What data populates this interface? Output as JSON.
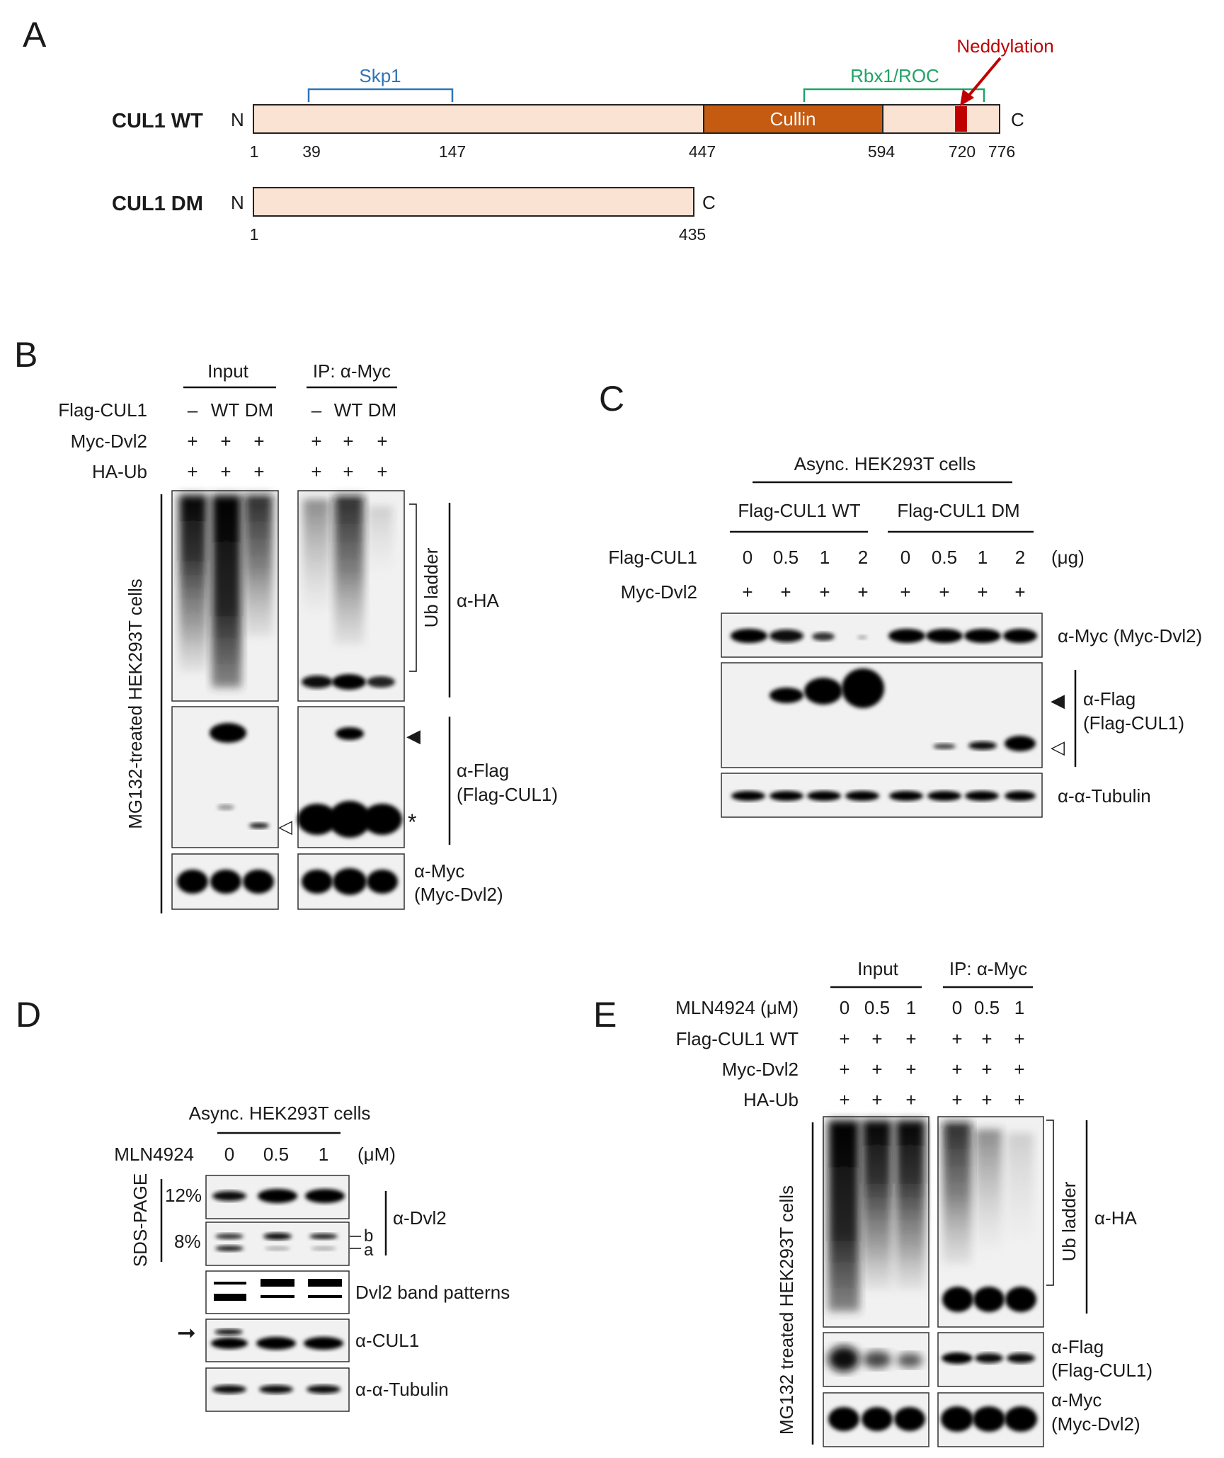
{
  "panels": {
    "A": "A",
    "B": "B",
    "C": "C",
    "D": "D",
    "E": "E"
  },
  "panel_a": {
    "wt_name": "CUL1 WT",
    "dm_name": "CUL1 DM",
    "n_term": "N",
    "c_term": "C",
    "cullin_label": "Cullin",
    "skp1_label": "Skp1",
    "rbx1_label": "Rbx1/ROC",
    "neddylation_label": "Neddylation",
    "wt_positions": [
      "1",
      "39",
      "147",
      "447",
      "594",
      "720",
      "776"
    ],
    "dm_positions": [
      "1",
      "435"
    ],
    "colors": {
      "domain_fill": "#fbe3d4",
      "cullin": "#c55a11",
      "neddylation": "#c00000",
      "skp1_bracket": "#2e75b6",
      "rbx1_bracket": "#21a366"
    }
  },
  "panel_b": {
    "input_label": "Input",
    "ip_label": "IP: α-Myc",
    "row_labels": [
      "Flag-CUL1",
      "Myc-Dvl2",
      "HA-Ub"
    ],
    "flag_values_input": [
      "–",
      "WT",
      "DM"
    ],
    "flag_values_ip": [
      "–",
      "WT",
      "DM"
    ],
    "plus": "+",
    "side_label": "MG132-treated HEK293T cells",
    "ub_ladder": "Ub ladder",
    "ha": "α-HA",
    "flag": "α-Flag",
    "flag_sub": "(Flag-CUL1)",
    "myc": "α-Myc",
    "myc_sub": "(Myc-Dvl2)",
    "filled_arrow": "◀",
    "open_arrow": "◁",
    "star": "*"
  },
  "panel_c": {
    "title": "Async. HEK293T cells",
    "group_wt": "Flag-CUL1  WT",
    "group_dm": "Flag-CUL1  DM",
    "row_flag": "Flag-CUL1",
    "row_myc": "Myc-Dvl2",
    "doses": [
      "0",
      "0.5",
      "1",
      "2",
      "0",
      "0.5",
      "1",
      "2"
    ],
    "unit": "(μg)",
    "plus": "+",
    "myc": "α-Myc (Myc-Dvl2)",
    "flag": "α-Flag",
    "flag_sub": "(Flag-CUL1)",
    "tubulin": "α-α-Tubulin",
    "filled_arrow": "◀",
    "open_arrow": "◁"
  },
  "panel_d": {
    "title": "Async. HEK293T cells",
    "drug": "MLN4924",
    "doses": [
      "0",
      "0.5",
      "1"
    ],
    "unit": "(μM)",
    "sds": "SDS-PAGE",
    "pct12": "12%",
    "pct8": "8%",
    "dvl2": "α-Dvl2",
    "band_b": "b",
    "band_a": "a",
    "patterns": "Dvl2  band  patterns",
    "cul1": "α-CUL1",
    "tubulin": "α-α-Tubulin",
    "arrow": "➞"
  },
  "panel_e": {
    "input_label": "Input",
    "ip_label": "IP: α-Myc",
    "row_labels": [
      "MLN4924  (μM)",
      "Flag-CUL1 WT",
      "Myc-Dvl2",
      "HA-Ub"
    ],
    "doses_input": [
      "0",
      "0.5",
      "1"
    ],
    "doses_ip": [
      "0",
      "0.5",
      "1"
    ],
    "plus": "+",
    "side_label": "MG132 treated HEK293T cells",
    "ub_ladder": "Ub ladder",
    "ha": "α-HA",
    "flag": "α-Flag",
    "flag_sub": "(Flag-CUL1)",
    "myc": "α-Myc",
    "myc_sub": "(Myc-Dvl2)"
  }
}
